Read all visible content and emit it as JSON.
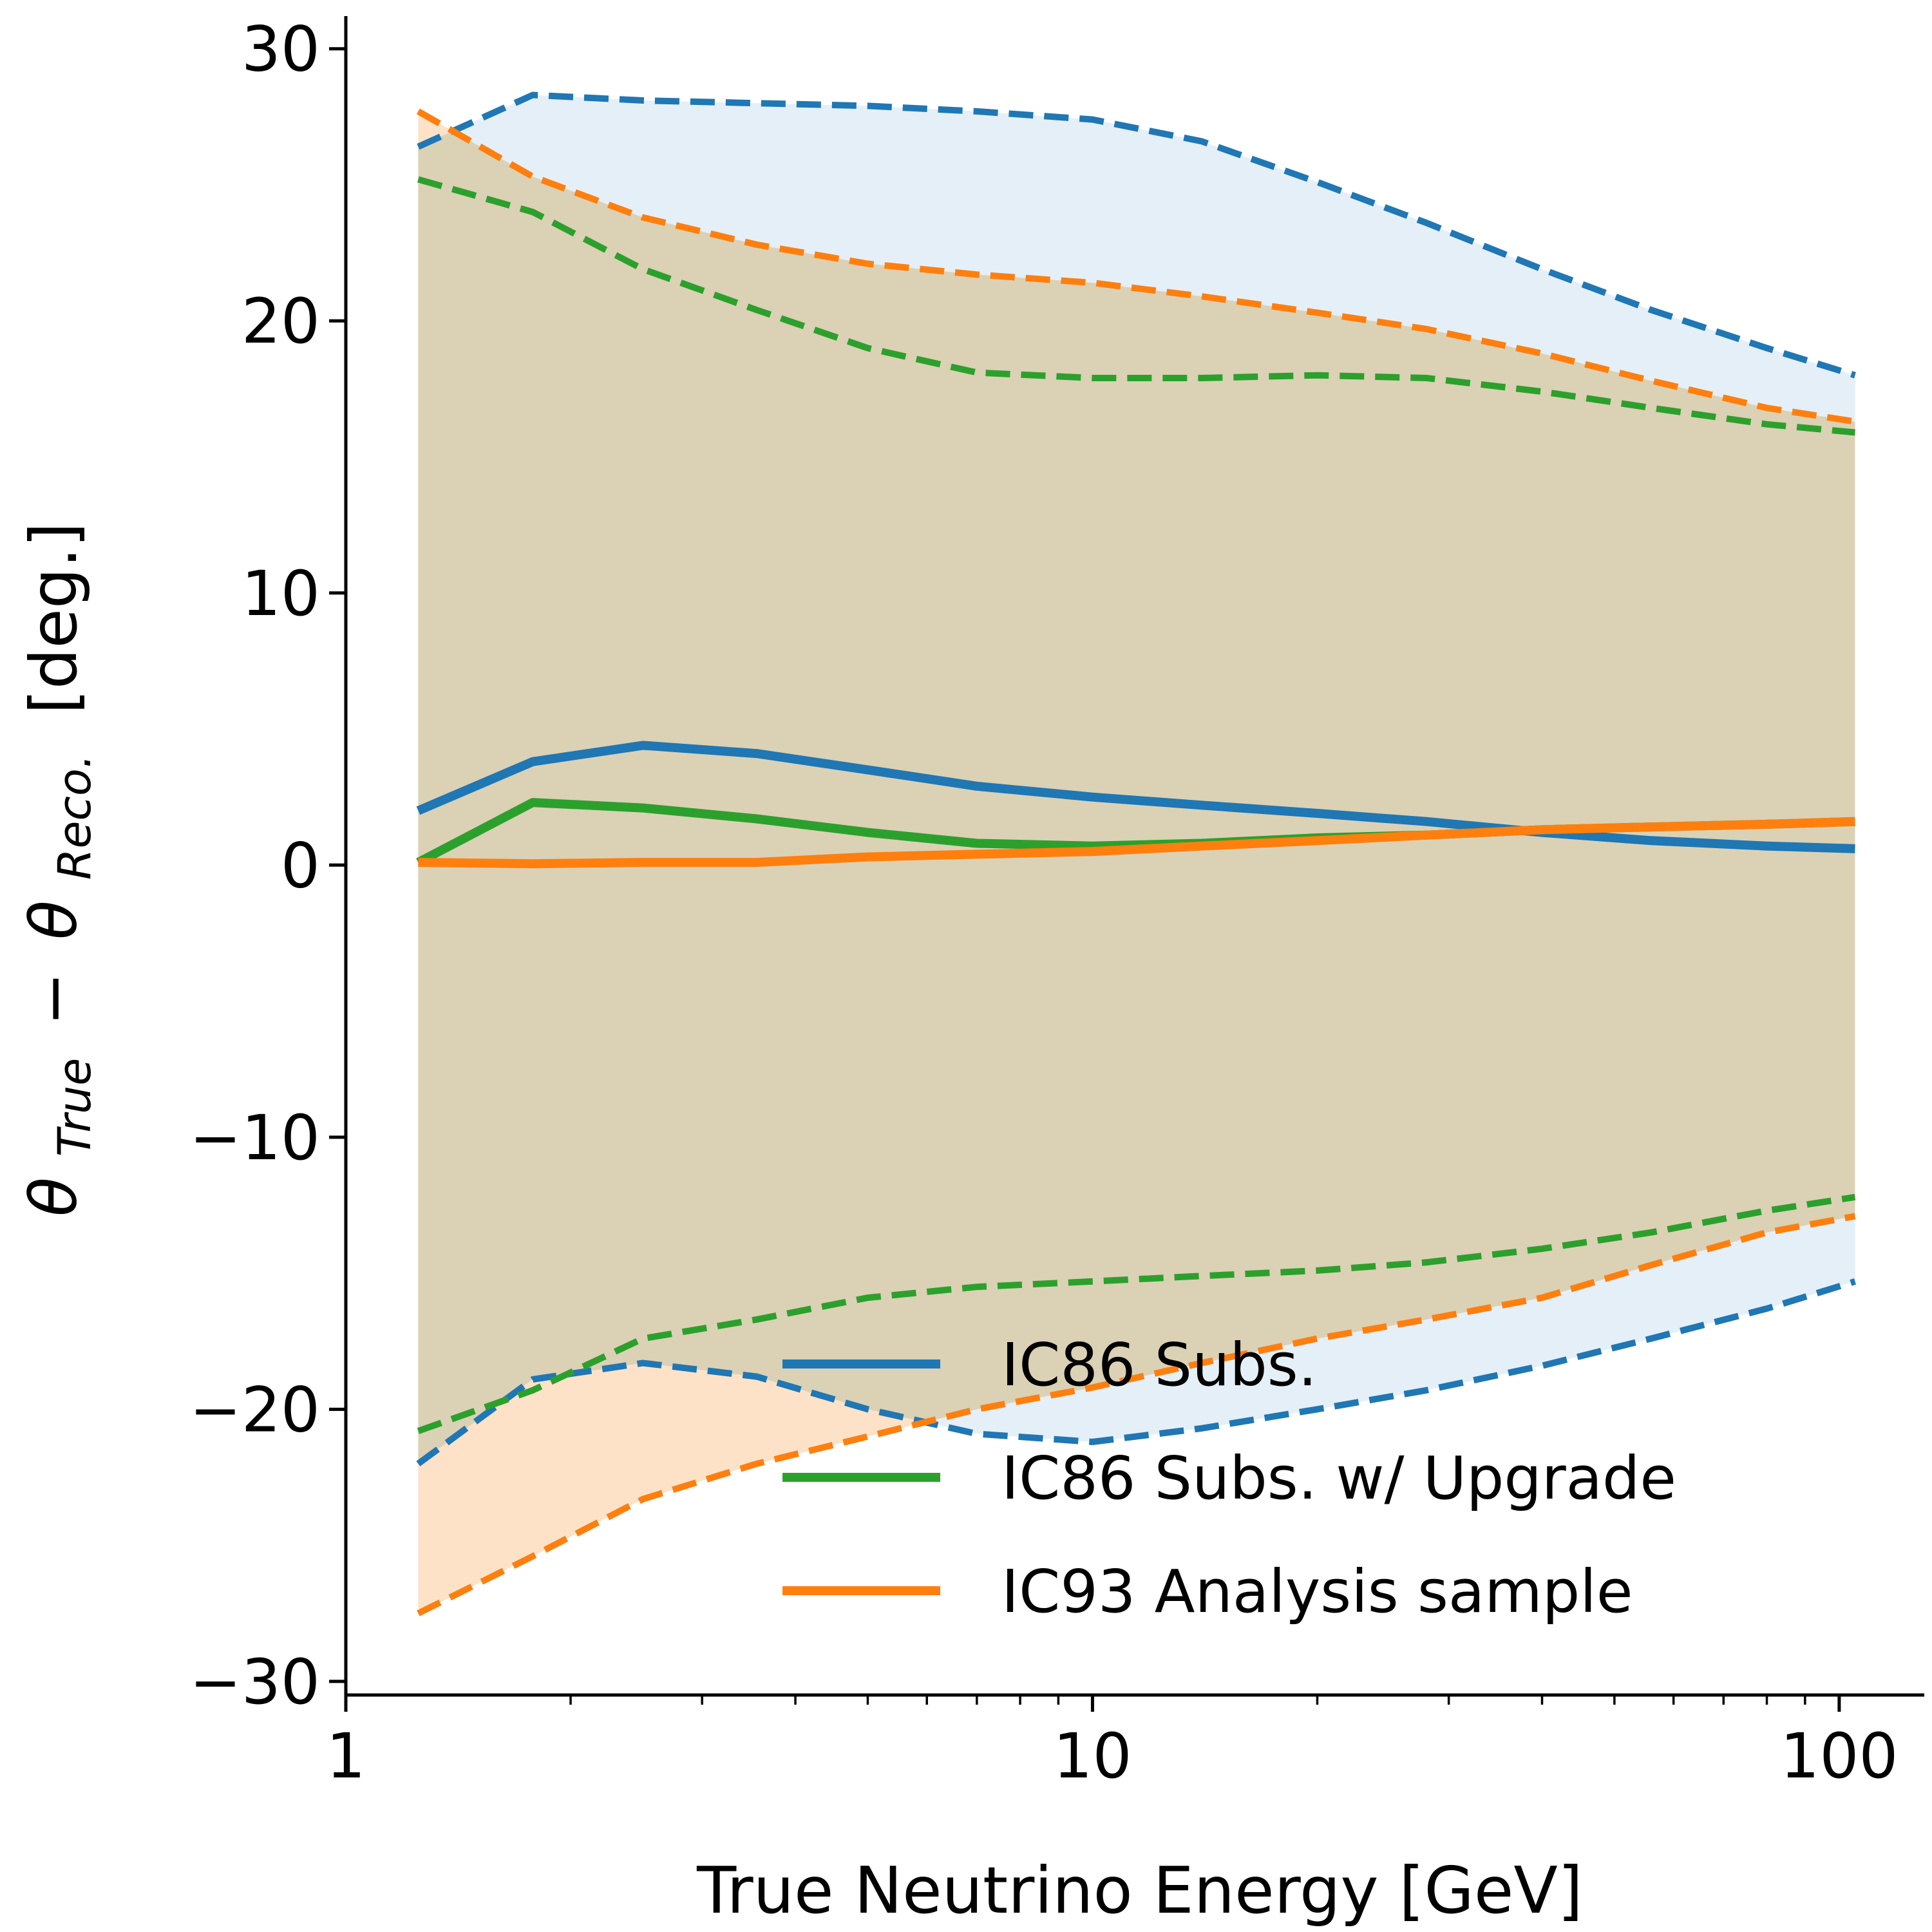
{
  "chart_data": {
    "type": "line",
    "xscale": "log",
    "xlim": [
      1,
      130
    ],
    "ylim": [
      -30.5,
      31.2
    ],
    "xlabel": "True Neutrino Energy [GeV]",
    "ylabel_parts": {
      "theta": "θ",
      "true_sub": "True",
      "minus": "−",
      "reco_sub": "Reco.",
      "unit": "[deg.]"
    },
    "xticks": [
      {
        "value": 1,
        "label": "1"
      },
      {
        "value": 10,
        "label": "10"
      },
      {
        "value": 100,
        "label": "100"
      }
    ],
    "yticks": [
      {
        "value": -30,
        "label": "−30"
      },
      {
        "value": -20,
        "label": "−20"
      },
      {
        "value": -10,
        "label": "−10"
      },
      {
        "value": 0,
        "label": "0"
      },
      {
        "value": 10,
        "label": "10"
      },
      {
        "value": 20,
        "label": "20"
      },
      {
        "value": 30,
        "label": "30"
      }
    ],
    "legend_position": "lower-right",
    "series": [
      {
        "name": "IC86 Subs.",
        "color": "#1f77b4",
        "band_fill": "#c6dcef",
        "x": [
          1.25,
          1.78,
          2.5,
          3.55,
          5.0,
          7.0,
          10.0,
          14.0,
          20.0,
          28.0,
          40.0,
          56.0,
          80.0,
          105.0
        ],
        "median": [
          2.0,
          3.8,
          4.4,
          4.1,
          3.5,
          2.9,
          2.5,
          2.2,
          1.9,
          1.6,
          1.2,
          0.9,
          0.7,
          0.6
        ],
        "upper": [
          26.4,
          28.3,
          28.1,
          28.0,
          27.9,
          27.7,
          27.4,
          26.6,
          25.1,
          23.6,
          21.9,
          20.4,
          19.0,
          18.0
        ],
        "lower": [
          -22.0,
          -18.9,
          -18.3,
          -18.8,
          -20.0,
          -20.9,
          -21.2,
          -20.7,
          -20.0,
          -19.3,
          -18.4,
          -17.4,
          -16.3,
          -15.3
        ]
      },
      {
        "name": "IC86 Subs. w/ Upgrade",
        "color": "#2ca02c",
        "band_fill": null,
        "x": [
          1.25,
          1.78,
          2.5,
          3.55,
          5.0,
          7.0,
          10.0,
          14.0,
          20.0,
          28.0,
          40.0,
          56.0,
          80.0,
          105.0
        ],
        "median": [
          0.1,
          2.3,
          2.1,
          1.7,
          1.2,
          0.8,
          0.7,
          0.8,
          1.0,
          1.1,
          1.3,
          1.4,
          1.5,
          1.6
        ],
        "upper": [
          25.2,
          24.0,
          21.9,
          20.4,
          19.0,
          18.1,
          17.9,
          17.9,
          18.0,
          17.9,
          17.4,
          16.8,
          16.2,
          15.9
        ],
        "lower": [
          -20.8,
          -19.3,
          -17.4,
          -16.7,
          -15.9,
          -15.5,
          -15.3,
          -15.1,
          -14.9,
          -14.6,
          -14.1,
          -13.5,
          -12.7,
          -12.2
        ]
      },
      {
        "name": "IC93 Analysis sample",
        "color": "#ff7f0e",
        "band_fill": "#fde0c5",
        "x": [
          1.25,
          1.78,
          2.5,
          3.55,
          5.0,
          7.0,
          10.0,
          14.0,
          20.0,
          28.0,
          40.0,
          56.0,
          80.0,
          105.0
        ],
        "median": [
          0.1,
          0.05,
          0.1,
          0.1,
          0.3,
          0.4,
          0.5,
          0.7,
          0.9,
          1.1,
          1.3,
          1.4,
          1.5,
          1.6
        ],
        "upper": [
          27.7,
          25.3,
          23.8,
          22.8,
          22.1,
          21.7,
          21.4,
          20.9,
          20.3,
          19.7,
          18.8,
          17.8,
          16.8,
          16.3
        ],
        "lower": [
          -27.5,
          -25.4,
          -23.3,
          -22.0,
          -21.0,
          -20.0,
          -19.2,
          -18.3,
          -17.4,
          -16.7,
          -15.9,
          -14.7,
          -13.5,
          -12.9
        ]
      }
    ],
    "overlap_fill": "#dbd1b5"
  }
}
